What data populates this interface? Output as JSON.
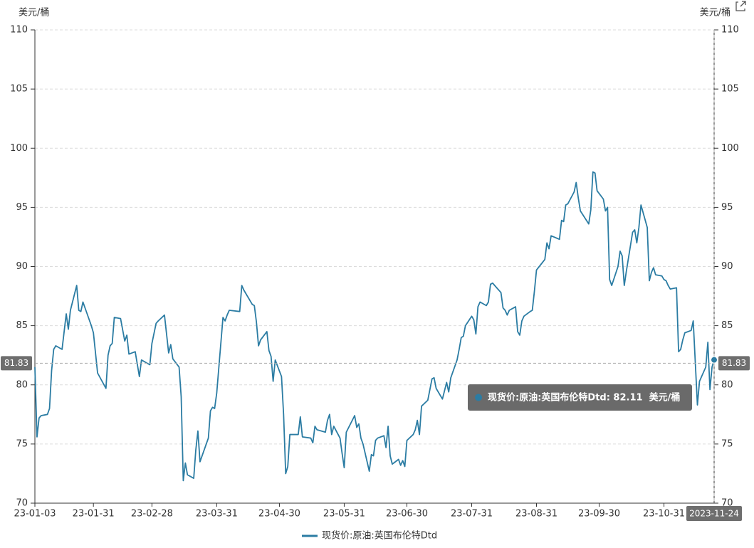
{
  "chart_data": {
    "type": "line",
    "y_unit": "美元/桶",
    "xlim": [
      "2023-01-03",
      "2023-11-24"
    ],
    "xticks": [
      {
        "value": "2023-01-03",
        "label": "23-01-03"
      },
      {
        "value": "2023-01-31",
        "label": "23-01-31"
      },
      {
        "value": "2023-02-28",
        "label": "23-02-28"
      },
      {
        "value": "2023-03-31",
        "label": "23-03-31"
      },
      {
        "value": "2023-04-30",
        "label": "23-04-30"
      },
      {
        "value": "2023-05-31",
        "label": "23-05-31"
      },
      {
        "value": "2023-06-30",
        "label": "23-06-30"
      },
      {
        "value": "2023-07-31",
        "label": "23-07-31"
      },
      {
        "value": "2023-08-31",
        "label": "23-08-31"
      },
      {
        "value": "2023-09-30",
        "label": "23-09-30"
      },
      {
        "value": "2023-10-31",
        "label": "23-10-31"
      }
    ],
    "ylim": [
      70,
      110
    ],
    "yticks": [
      70,
      75,
      80,
      85,
      90,
      95,
      100,
      105,
      110
    ],
    "grid": true,
    "legend": "bottom",
    "crosshair_value": 81.83,
    "crosshair_x": "2023-11-24",
    "tooltip": "现货价:原油:英国布伦特Dtd: 82.11  美元/桶",
    "x": [
      "2023-01-03",
      "2023-01-04",
      "2023-01-05",
      "2023-01-06",
      "2023-01-09",
      "2023-01-10",
      "2023-01-11",
      "2023-01-12",
      "2023-01-13",
      "2023-01-16",
      "2023-01-18",
      "2023-01-19",
      "2023-01-20",
      "2023-01-23",
      "2023-01-24",
      "2023-01-25",
      "2023-01-26",
      "2023-01-30",
      "2023-01-31",
      "2023-02-02",
      "2023-02-06",
      "2023-02-07",
      "2023-02-08",
      "2023-02-09",
      "2023-02-10",
      "2023-02-13",
      "2023-02-15",
      "2023-02-16",
      "2023-02-17",
      "2023-02-20",
      "2023-02-22",
      "2023-02-23",
      "2023-02-27",
      "2023-02-28",
      "2023-03-02",
      "2023-03-03",
      "2023-03-06",
      "2023-03-08",
      "2023-03-09",
      "2023-03-10",
      "2023-03-13",
      "2023-03-14",
      "2023-03-15",
      "2023-03-16",
      "2023-03-17",
      "2023-03-20",
      "2023-03-21",
      "2023-03-22",
      "2023-03-23",
      "2023-03-27",
      "2023-03-28",
      "2023-03-29",
      "2023-03-30",
      "2023-03-31",
      "2023-04-03",
      "2023-04-04",
      "2023-04-05",
      "2023-04-06",
      "2023-04-11",
      "2023-04-12",
      "2023-04-13",
      "2023-04-17",
      "2023-04-18",
      "2023-04-19",
      "2023-04-20",
      "2023-04-21",
      "2023-04-24",
      "2023-04-25",
      "2023-04-26",
      "2023-04-27",
      "2023-04-28",
      "2023-05-01",
      "2023-05-02",
      "2023-05-03",
      "2023-05-04",
      "2023-05-05",
      "2023-05-09",
      "2023-05-10",
      "2023-05-11",
      "2023-05-15",
      "2023-05-16",
      "2023-05-17",
      "2023-05-18",
      "2023-05-22",
      "2023-05-23",
      "2023-05-24",
      "2023-05-25",
      "2023-05-26",
      "2023-05-29",
      "2023-05-30",
      "2023-05-31",
      "2023-06-01",
      "2023-06-05",
      "2023-06-06",
      "2023-06-07",
      "2023-06-08",
      "2023-06-09",
      "2023-06-12",
      "2023-06-13",
      "2023-06-14",
      "2023-06-15",
      "2023-06-16",
      "2023-06-19",
      "2023-06-20",
      "2023-06-21",
      "2023-06-22",
      "2023-06-23",
      "2023-06-26",
      "2023-06-27",
      "2023-06-28",
      "2023-06-29",
      "2023-06-30",
      "2023-07-03",
      "2023-07-04",
      "2023-07-05",
      "2023-07-06",
      "2023-07-07",
      "2023-07-10",
      "2023-07-12",
      "2023-07-13",
      "2023-07-14",
      "2023-07-17",
      "2023-07-19",
      "2023-07-20",
      "2023-07-21",
      "2023-07-24",
      "2023-07-25",
      "2023-07-26",
      "2023-07-27",
      "2023-07-28",
      "2023-07-31",
      "2023-08-01",
      "2023-08-02",
      "2023-08-03",
      "2023-08-04",
      "2023-08-07",
      "2023-08-08",
      "2023-08-09",
      "2023-08-10",
      "2023-08-11",
      "2023-08-14",
      "2023-08-15",
      "2023-08-16",
      "2023-08-17",
      "2023-08-18",
      "2023-08-21",
      "2023-08-22",
      "2023-08-23",
      "2023-08-24",
      "2023-08-25",
      "2023-08-28",
      "2023-08-29",
      "2023-08-30",
      "2023-08-31",
      "2023-09-04",
      "2023-09-05",
      "2023-09-06",
      "2023-09-07",
      "2023-09-11",
      "2023-09-12",
      "2023-09-13",
      "2023-09-14",
      "2023-09-15",
      "2023-09-18",
      "2023-09-19",
      "2023-09-20",
      "2023-09-21",
      "2023-09-25",
      "2023-09-26",
      "2023-09-27",
      "2023-09-28",
      "2023-09-29",
      "2023-10-02",
      "2023-10-03",
      "2023-10-04",
      "2023-10-05",
      "2023-10-06",
      "2023-10-09",
      "2023-10-10",
      "2023-10-11",
      "2023-10-12",
      "2023-10-13",
      "2023-10-16",
      "2023-10-17",
      "2023-10-18",
      "2023-10-19",
      "2023-10-20",
      "2023-10-23",
      "2023-10-24",
      "2023-10-25",
      "2023-10-26",
      "2023-10-27",
      "2023-10-30",
      "2023-10-31",
      "2023-11-01",
      "2023-11-02",
      "2023-11-03",
      "2023-11-06",
      "2023-11-07",
      "2023-11-08",
      "2023-11-09",
      "2023-11-10",
      "2023-11-13",
      "2023-11-14",
      "2023-11-16",
      "2023-11-17",
      "2023-11-20",
      "2023-11-21",
      "2023-11-22",
      "2023-11-23",
      "2023-11-24"
    ],
    "series": [
      {
        "name": "现货价:原油:英国布伦特Dtd",
        "color": "#2b7ca3",
        "values": [
          81.5,
          75.6,
          77.2,
          77.4,
          77.5,
          78.0,
          81.2,
          83.0,
          83.3,
          83.0,
          86.0,
          84.7,
          86.3,
          88.4,
          86.3,
          86.2,
          87.0,
          85.0,
          84.4,
          81.0,
          79.7,
          82.5,
          83.3,
          83.5,
          85.7,
          85.6,
          83.7,
          84.2,
          82.6,
          82.8,
          80.7,
          82.1,
          81.7,
          83.5,
          85.2,
          85.4,
          85.9,
          82.7,
          83.4,
          82.2,
          81.5,
          79.0,
          71.9,
          73.4,
          72.4,
          72.1,
          74.5,
          76.1,
          73.5,
          75.5,
          77.8,
          78.1,
          78.0,
          79.3,
          85.7,
          85.4,
          85.9,
          86.3,
          86.2,
          88.4,
          88.0,
          86.8,
          86.7,
          85.3,
          83.3,
          83.8,
          84.5,
          82.9,
          82.4,
          80.3,
          82.1,
          80.7,
          77.5,
          72.5,
          73.1,
          75.8,
          75.8,
          77.3,
          75.6,
          75.5,
          75.1,
          76.5,
          76.2,
          76.0,
          77.0,
          77.5,
          75.8,
          76.5,
          75.5,
          74.2,
          73.0,
          76.0,
          77.4,
          76.4,
          76.7,
          75.5,
          75.0,
          72.7,
          74.1,
          74.0,
          75.3,
          75.5,
          75.7,
          74.7,
          76.5,
          74.0,
          73.3,
          73.7,
          73.2,
          73.6,
          73.1,
          75.3,
          75.8,
          76.2,
          77.0,
          75.8,
          78.2,
          78.7,
          80.5,
          80.6,
          79.7,
          78.8,
          80.2,
          79.4,
          80.6,
          82.1,
          83.0,
          84.0,
          84.1,
          85.0,
          85.8,
          85.5,
          84.3,
          86.6,
          87.0,
          86.7,
          87.0,
          88.5,
          88.6,
          88.4,
          87.8,
          86.5,
          86.3,
          85.9,
          86.3,
          86.6,
          84.5,
          84.2,
          85.4,
          85.8,
          86.2,
          86.3,
          87.9,
          89.7,
          90.6,
          92.0,
          91.5,
          92.6,
          92.3,
          93.9,
          93.8,
          95.2,
          95.3,
          96.3,
          97.1,
          95.8,
          94.7,
          93.6,
          94.8,
          98.0,
          97.9,
          96.4,
          95.7,
          94.7,
          95.0,
          88.9,
          88.4,
          90.0,
          91.3,
          90.9,
          88.4,
          89.6,
          92.9,
          93.1,
          92.0,
          93.3,
          95.2,
          93.3,
          88.8,
          89.5,
          89.9,
          89.3,
          89.2,
          88.9,
          88.8,
          88.4,
          88.1,
          88.2,
          82.8,
          83.0,
          83.8,
          84.4,
          84.6,
          85.4,
          78.3,
          80.3,
          81.5,
          83.6,
          79.6,
          81.5,
          82.11
        ]
      }
    ]
  }
}
